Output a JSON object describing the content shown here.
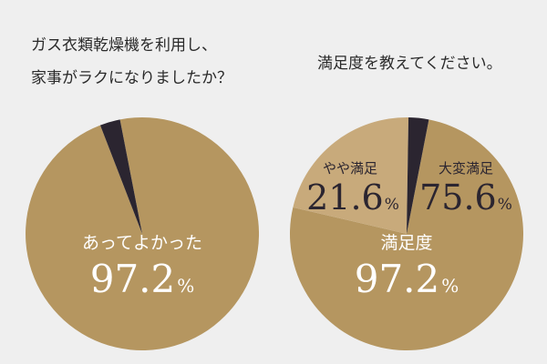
{
  "left": {
    "question_line1": "ガス衣類乾燥機を利用し、",
    "question_line2": "家事がラクになりましたか？",
    "label": "あってよかった",
    "value": "97.2",
    "unit": "%"
  },
  "right": {
    "question": "満足度を教えてください。",
    "label": "満足度",
    "value": "97.2",
    "unit": "%",
    "seg_a_label": "大変満足",
    "seg_a_value": "75.6",
    "seg_b_label": "やや満足",
    "seg_b_value": "21.6",
    "unit_small": "%"
  },
  "colors": {
    "background": "#efefef",
    "gold": "#b59660",
    "light_gold": "#c8aa7b",
    "dark": "#2b2530"
  },
  "chart_data": [
    {
      "type": "pie",
      "categories": [
        "あってよかった",
        ""
      ],
      "values": [
        97.2,
        2.8
      ],
      "colors": [
        "#b59660",
        "#2b2530"
      ]
    },
    {
      "type": "pie",
      "categories": [
        "大変満足",
        "やや満足",
        ""
      ],
      "values": [
        75.6,
        21.6,
        2.8
      ],
      "colors": [
        "#b59660",
        "#c8aa7b",
        "#2b2530"
      ]
    }
  ]
}
